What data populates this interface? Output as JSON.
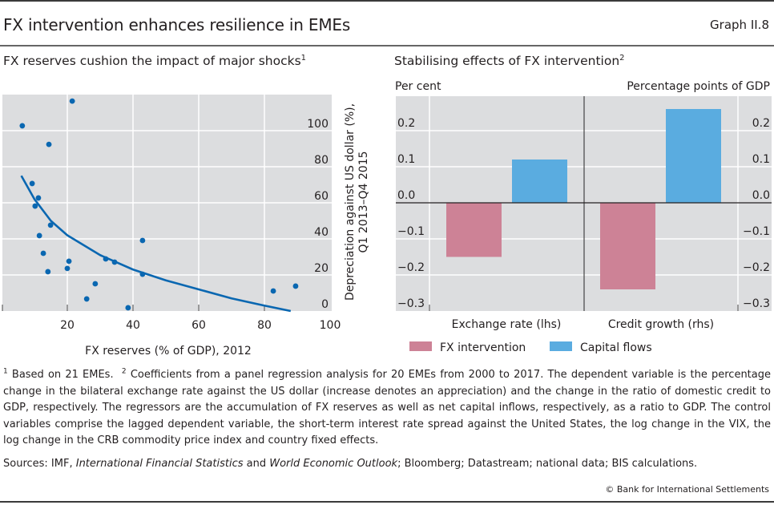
{
  "header": {
    "title": "FX intervention enhances resilience in EMEs",
    "graph_number": "Graph II.8"
  },
  "left_panel": {
    "title": "FX reserves cushion the impact of major shocks",
    "title_footnote": "1"
  },
  "right_panel": {
    "title": "Stabilising effects of FX intervention",
    "title_footnote": "2"
  },
  "chart_data": [
    {
      "type": "scatter",
      "title": "FX reserves cushion the impact of major shocks",
      "xlabel": "FX reserves (% of GDP), 2012",
      "ylabel": "Depreciation against US dollar (%), Q1 2013–Q4 2015",
      "ylabel_lines": [
        "Depreciation against US dollar (%),",
        "Q1 2013–Q4 2015"
      ],
      "xlim": [
        0,
        100
      ],
      "ylim": [
        0,
        115
      ],
      "xticks": [
        20,
        40,
        60,
        80,
        100
      ],
      "yticks": [
        0,
        20,
        40,
        60,
        80,
        100
      ],
      "y_axis_side": "right",
      "grid": true,
      "points": [
        {
          "x": 6.3,
          "y": 102.7
        },
        {
          "x": 21.5,
          "y": 116.4
        },
        {
          "x": 14.4,
          "y": 92.4
        },
        {
          "x": 9.3,
          "y": 70.7
        },
        {
          "x": 11.2,
          "y": 62.7
        },
        {
          "x": 10.2,
          "y": 58.2
        },
        {
          "x": 14.9,
          "y": 47.6
        },
        {
          "x": 11.5,
          "y": 41.8
        },
        {
          "x": 12.7,
          "y": 32.0
        },
        {
          "x": 20.5,
          "y": 27.6
        },
        {
          "x": 14.1,
          "y": 21.8
        },
        {
          "x": 20.0,
          "y": 23.6
        },
        {
          "x": 31.7,
          "y": 28.9
        },
        {
          "x": 34.4,
          "y": 27.1
        },
        {
          "x": 42.9,
          "y": 39.1
        },
        {
          "x": 42.9,
          "y": 20.4
        },
        {
          "x": 28.5,
          "y": 15.1
        },
        {
          "x": 25.9,
          "y": 6.7
        },
        {
          "x": 38.5,
          "y": 1.8
        },
        {
          "x": 82.7,
          "y": 11.1
        },
        {
          "x": 89.5,
          "y": 13.8
        }
      ],
      "fit_line": {
        "type": "log",
        "x": [
          6,
          10,
          15,
          20,
          30,
          40,
          50,
          60,
          70,
          80,
          88
        ],
        "y": [
          75,
          62,
          50,
          42,
          31,
          23,
          17,
          12,
          7,
          3,
          0
        ]
      },
      "colors": {
        "points": "#0a67b1",
        "fit": "#0a67b1"
      }
    },
    {
      "type": "bar",
      "title": "Stabilising effects of FX intervention",
      "left_axis_label": "Per cent",
      "right_axis_label": "Percentage points of GDP",
      "categories": [
        "Exchange rate (lhs)",
        "Credit growth (rhs)"
      ],
      "series": [
        {
          "name": "FX intervention",
          "color": "#cd8296",
          "values": [
            -0.15,
            -0.24
          ]
        },
        {
          "name": "Capital flows",
          "color": "#5aace0",
          "values": [
            0.12,
            0.26
          ]
        }
      ],
      "ylim": [
        -0.3,
        0.3
      ],
      "yticks": [
        -0.3,
        -0.2,
        -0.1,
        0.0,
        0.1,
        0.2
      ],
      "ytick_labels": [
        "−0.3",
        "−0.2",
        "−0.1",
        "0.0",
        "0.1",
        "0.2"
      ],
      "grid": true,
      "legend": "bottom-left"
    }
  ],
  "footnotes": {
    "n1_marker": "1",
    "n1_text": " Based on 21 EMEs.  ",
    "n2_marker": "2",
    "n2_text": " Coefficients from a panel regression analysis for 20 EMEs from 2000 to 2017. The dependent variable is the percentage change in the bilateral exchange rate against the US dollar (increase denotes an appreciation) and the change in the ratio of domestic credit to GDP, respectively. The regressors are the accumulation of FX reserves as well as net capital inflows, respectively, as a ratio to GDP. The control variables comprise the lagged dependent variable, the short-term interest rate spread against the United States, the log change in the VIX, the log change in the CRB commodity price index and country fixed effects."
  },
  "sources": {
    "prefix": "Sources: IMF, ",
    "italic1": "International Financial Statistics",
    "mid": " and ",
    "italic2": "World Economic Outlook",
    "suffix": "; Bloomberg; Datastream; national data; BIS calculations."
  },
  "copyright": "© Bank for International Settlements"
}
